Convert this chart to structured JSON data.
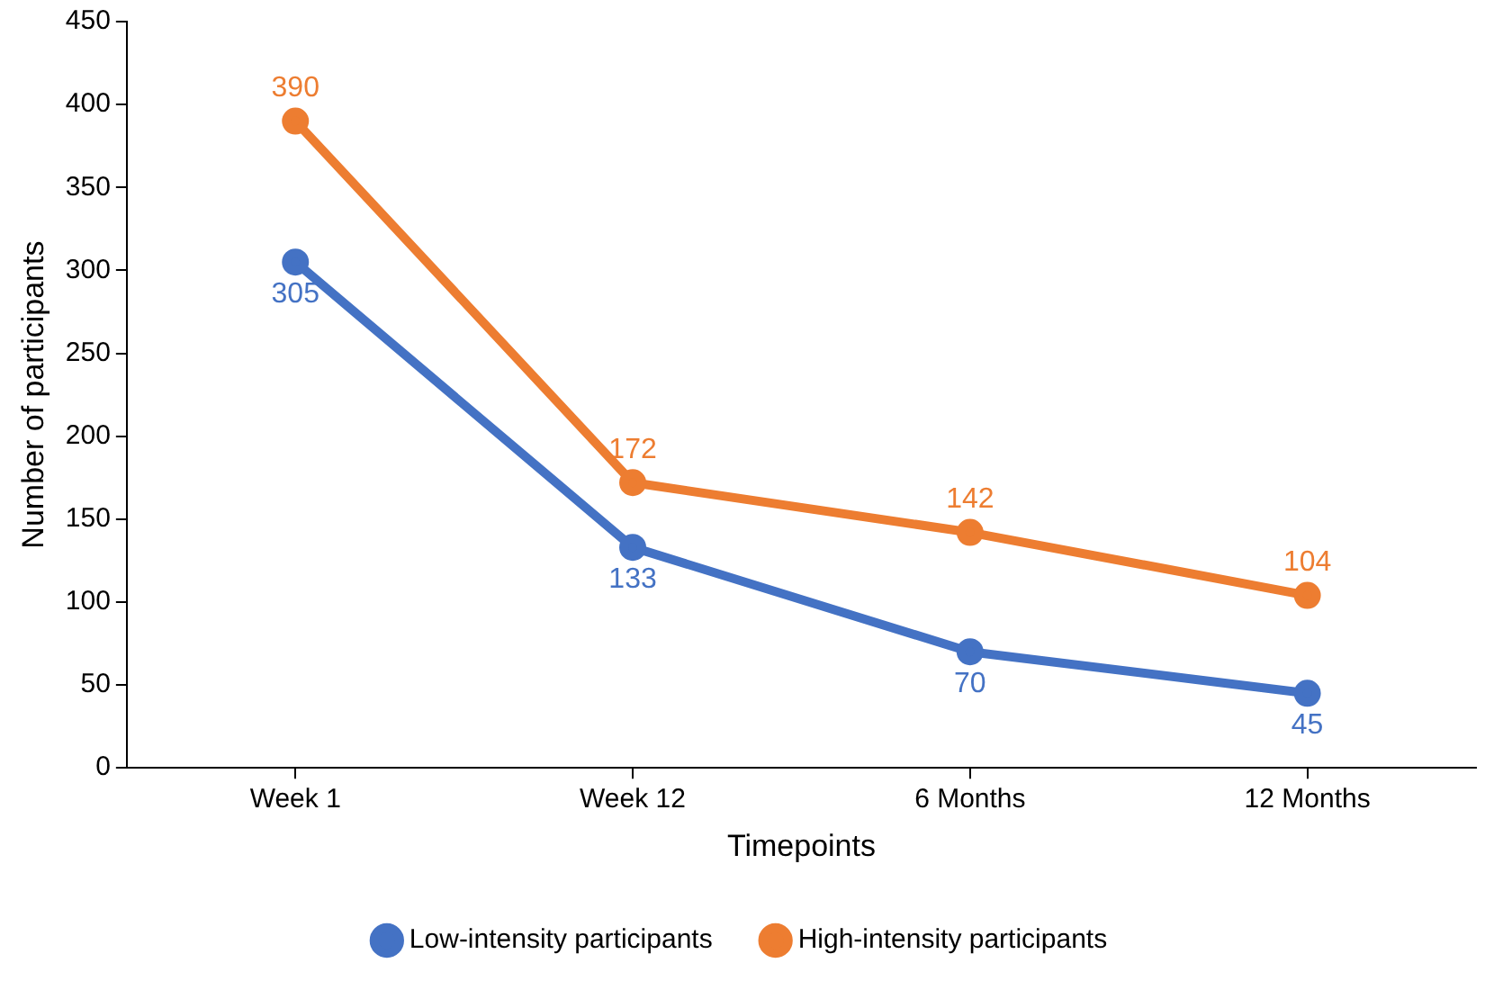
{
  "chart_data": {
    "type": "line",
    "xlabel": "Timepoints",
    "ylabel": "Number of participants",
    "categories": [
      "Week 1",
      "Week 12",
      "6 Months",
      "12 Months"
    ],
    "series": [
      {
        "name": "Low-intensity participants",
        "color": "#4472c4",
        "values": [
          305,
          133,
          70,
          45
        ]
      },
      {
        "name": "High-intensity participants",
        "color": "#ed7d31",
        "values": [
          390,
          172,
          142,
          104
        ]
      }
    ],
    "ylim": [
      0,
      450
    ],
    "yticks": [
      0,
      50,
      100,
      150,
      200,
      250,
      300,
      350,
      400,
      450
    ],
    "grid": false,
    "legend": "bottom",
    "marker": "circle",
    "line_style": "solid",
    "data_labels": true
  }
}
